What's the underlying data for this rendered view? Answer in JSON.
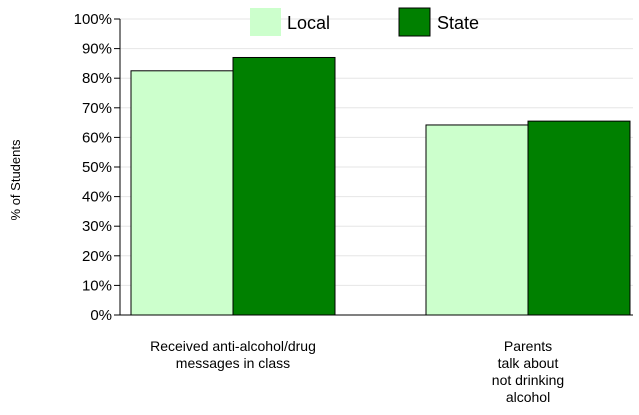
{
  "chart_data": {
    "type": "bar",
    "ylabel": "% of Students",
    "ylim": [
      0,
      100
    ],
    "yticks": [
      "0%",
      "10%",
      "20%",
      "30%",
      "40%",
      "50%",
      "60%",
      "70%",
      "80%",
      "90%",
      "100%"
    ],
    "categories": [
      [
        "Received  anti-alcohol/drug",
        "messages in class"
      ],
      [
        "Parents",
        "talk about",
        "not drinking",
        "alcohol"
      ]
    ],
    "series": [
      {
        "name": "Local",
        "values": [
          82.5,
          64.2
        ],
        "color": "#ccffcc"
      },
      {
        "name": "State",
        "values": [
          87.0,
          65.5
        ],
        "color": "#008000"
      }
    ],
    "legend": "top",
    "grid": true
  }
}
